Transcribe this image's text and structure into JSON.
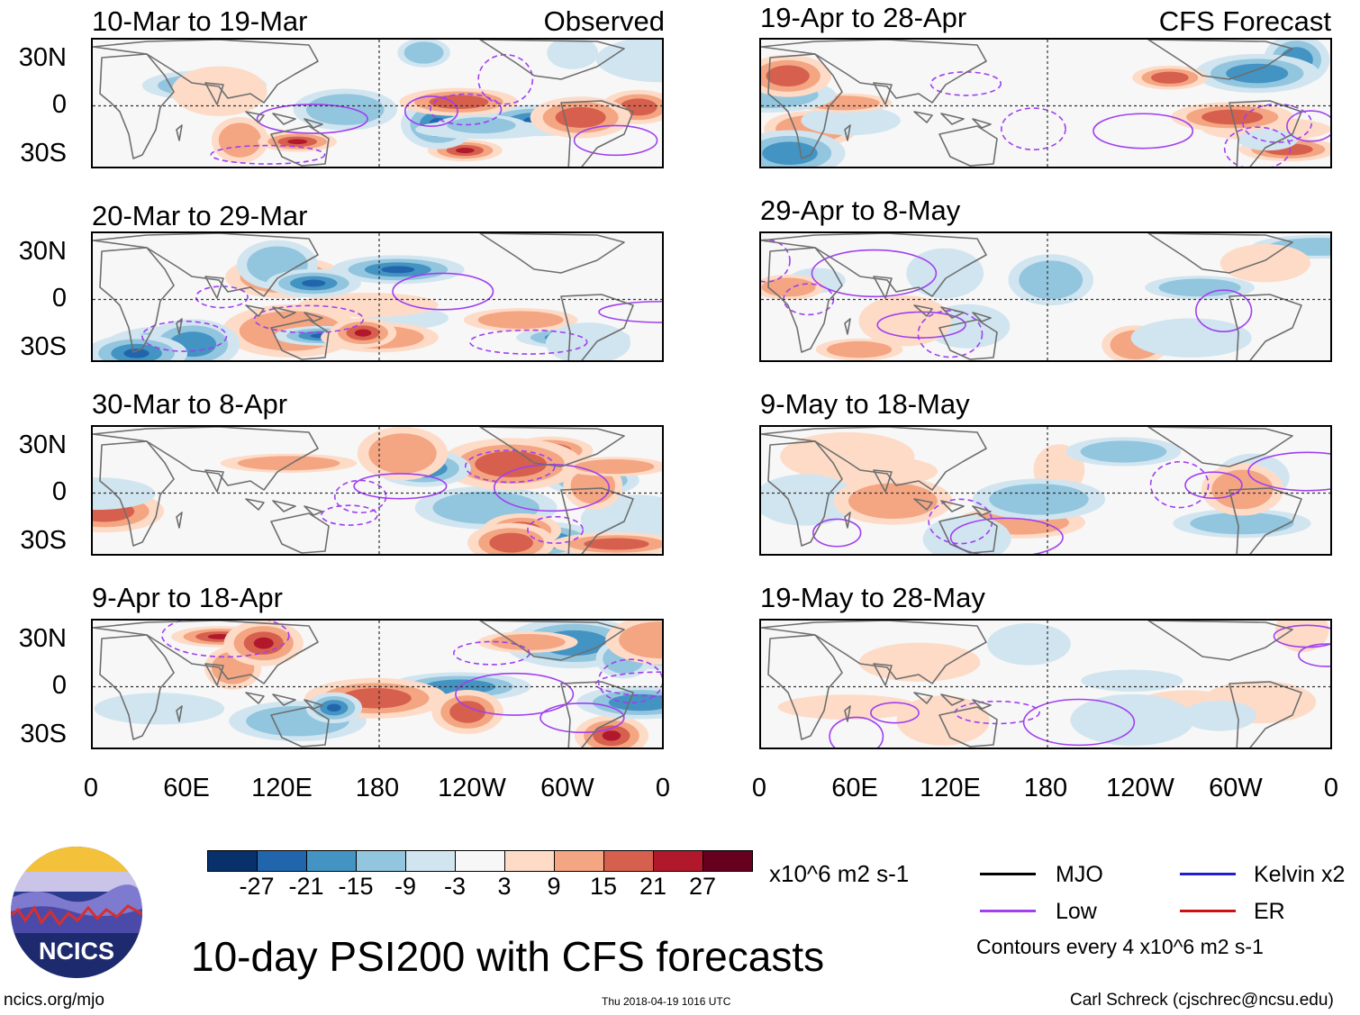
{
  "header": {
    "observed_label": "Observed",
    "forecast_label": "CFS Forecast"
  },
  "panels_left": [
    {
      "title": "10-Mar to 19-Mar"
    },
    {
      "title": "20-Mar to 29-Mar"
    },
    {
      "title": "30-Mar to 8-Apr"
    },
    {
      "title": "9-Apr to 18-Apr"
    }
  ],
  "panels_right": [
    {
      "title": "19-Apr to 28-Apr"
    },
    {
      "title": "29-Apr to 8-May"
    },
    {
      "title": "9-May to 18-May"
    },
    {
      "title": "19-May to 28-May"
    }
  ],
  "lat_labels": [
    "30N",
    "0",
    "30S"
  ],
  "lon_labels": [
    "0",
    "60E",
    "120E",
    "180",
    "120W",
    "60W",
    "0"
  ],
  "colorbar": {
    "colors": [
      "#08306b",
      "#2166ac",
      "#4393c3",
      "#92c5de",
      "#d1e5f0",
      "#f7f7f7",
      "#fddbc7",
      "#f4a582",
      "#d6604d",
      "#b2182b",
      "#67001f"
    ],
    "labels": [
      "-27",
      "-21",
      "-15",
      "-9",
      "-3",
      "3",
      "9",
      "15",
      "21",
      "27"
    ],
    "units": "x10^6 m2 s-1"
  },
  "legend": {
    "items": [
      {
        "label": "MJO",
        "color": "#000000"
      },
      {
        "label": "Kelvin x2",
        "color": "#1f1fd0"
      },
      {
        "label": "Low",
        "color": "#a040f0"
      },
      {
        "label": "ER",
        "color": "#d01010"
      }
    ],
    "contour_note": "Contours every 4 x10^6 m2 s-1"
  },
  "title": "10-day PSI200 with CFS forecasts",
  "logo_text": "NCICS",
  "footer": {
    "url": "ncics.org/mjo",
    "timestamp": "Thu 2018-04-19 1016 UTC",
    "credit": "Carl Schreck (cjschrec@ncsu.edu)"
  }
}
